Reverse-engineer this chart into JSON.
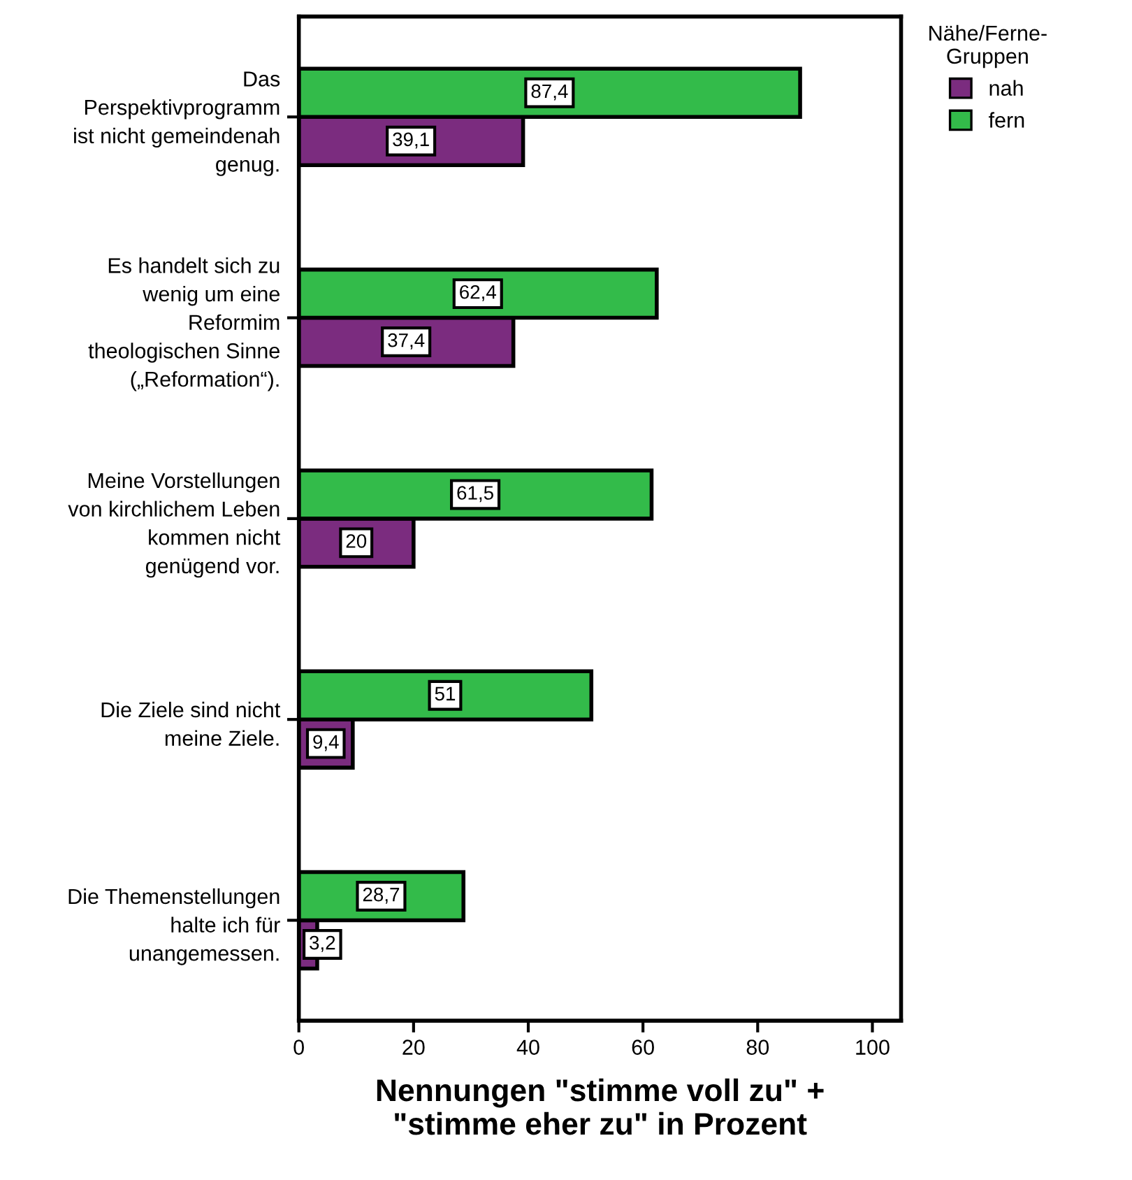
{
  "chart_data": {
    "type": "bar",
    "orientation": "horizontal",
    "xlabel": "Nennungen \"stimme voll zu\" +\n\"stimme eher zu\" in Prozent",
    "legend_title": "Nähe/Ferne-\nGruppen",
    "legend": "top right",
    "categories": [
      "Das\nPerspektivprogramm\nist nicht gemeindenah\ngenug.",
      "Es handelt sich zu\nwenig um eine\nReformim\ntheologischen Sinne\n(„Reformation“).",
      "Meine Vorstellungen\nvon kirchlichem Leben\nkommen nicht\ngenügend vor.",
      "Die Ziele sind nicht\nmeine Ziele.",
      "Die Themenstellungen\nhalte ich für\nunangemessen."
    ],
    "series": [
      {
        "name": "nah",
        "color": "#7b2c7f",
        "values": [
          39.1,
          37.4,
          20,
          9.4,
          3.2
        ],
        "value_labels": [
          "39,1",
          "37,4",
          "20",
          "9,4",
          "3,2"
        ]
      },
      {
        "name": "fern",
        "color": "#33bb4a",
        "values": [
          87.4,
          62.4,
          61.5,
          51,
          28.7
        ],
        "value_labels": [
          "87,4",
          "62,4",
          "61,5",
          "51",
          "28,7"
        ]
      }
    ],
    "xlim": [
      0,
      105
    ],
    "xticks": [
      0,
      20,
      40,
      60,
      80,
      100
    ],
    "grid": false
  }
}
